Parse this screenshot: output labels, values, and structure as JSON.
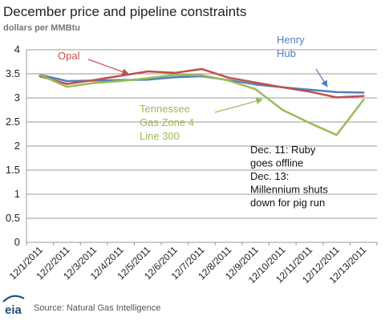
{
  "header": {
    "title": "December price and pipeline constraints",
    "subtitle": "dollars per MMBtu"
  },
  "footer": {
    "logo_text": "eia",
    "source": "Source: Natural Gas Intelligence"
  },
  "colors": {
    "grid": "#9a9a9a",
    "axis": "#9a9a9a",
    "henry_hub": "#4f81bd",
    "opal": "#c0504d",
    "tennessee": "#9bbb59"
  },
  "chart_data": {
    "type": "line",
    "title": "December price and pipeline constraints",
    "subtitle": "dollars per MMBtu",
    "xlabel": "",
    "ylabel": "",
    "ylim": [
      0,
      4
    ],
    "yticks": [
      "0",
      "0.5",
      "1",
      "1.5",
      "2",
      "2.5",
      "3",
      "3.5",
      "4"
    ],
    "grid": true,
    "categories": [
      "12/1/2011",
      "12/2/2011",
      "12/3/2011",
      "12/4/2011",
      "12/5/2011",
      "12/6/2011",
      "12/7/2011",
      "12/8/2011",
      "12/9/2011",
      "12/10/2011",
      "12/11/2011",
      "12/12/2011",
      "12/13/2011"
    ],
    "series": [
      {
        "name": "Henry Hub",
        "label_lines": [
          "Henry",
          "Hub"
        ],
        "color": "#4f81bd",
        "values": [
          3.48,
          3.35,
          3.36,
          3.37,
          3.38,
          3.43,
          3.45,
          3.37,
          3.28,
          3.22,
          3.17,
          3.12,
          3.11
        ]
      },
      {
        "name": "Opal",
        "label_lines": [
          "Opal"
        ],
        "color": "#c0504d",
        "values": [
          3.45,
          3.29,
          3.37,
          3.46,
          3.55,
          3.52,
          3.6,
          3.42,
          3.32,
          3.22,
          3.13,
          3.01,
          3.04
        ]
      },
      {
        "name": "Tennessee Gas Zone 4 Line 300",
        "label_lines": [
          "Tennessee",
          "Gas Zone 4",
          "Line 300"
        ],
        "color": "#9bbb59",
        "values": [
          3.48,
          3.23,
          3.31,
          3.35,
          3.41,
          3.48,
          3.47,
          3.36,
          3.18,
          2.75,
          2.48,
          2.23,
          2.96
        ]
      }
    ],
    "annotations": [
      {
        "lines": [
          "Dec. 11: Ruby",
          "goes offline",
          "Dec. 13:",
          "Millennium shuts",
          "down for pig run"
        ]
      }
    ]
  }
}
